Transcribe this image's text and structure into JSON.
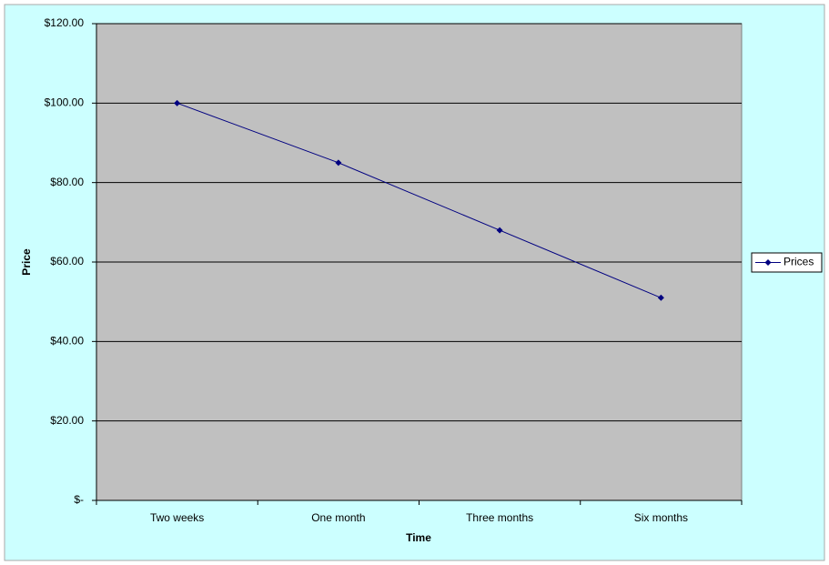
{
  "chart_data": {
    "type": "line",
    "x_label": "Time",
    "y_label": "Price",
    "categories": [
      "Two weeks",
      "One month",
      "Three months",
      "Six months"
    ],
    "series": [
      {
        "name": "Prices",
        "color": "#000080",
        "values": [
          100,
          85,
          68,
          51
        ]
      }
    ],
    "ylim": [
      0,
      120
    ],
    "yticks": [
      {
        "value": 0,
        "label": "$-"
      },
      {
        "value": 20,
        "label": "$20.00"
      },
      {
        "value": 40,
        "label": "$40.00"
      },
      {
        "value": 60,
        "label": "$60.00"
      },
      {
        "value": 80,
        "label": "$80.00"
      },
      {
        "value": 100,
        "label": "$100.00"
      },
      {
        "value": 120,
        "label": "$120.00"
      }
    ],
    "grid": true,
    "legend": "right"
  }
}
